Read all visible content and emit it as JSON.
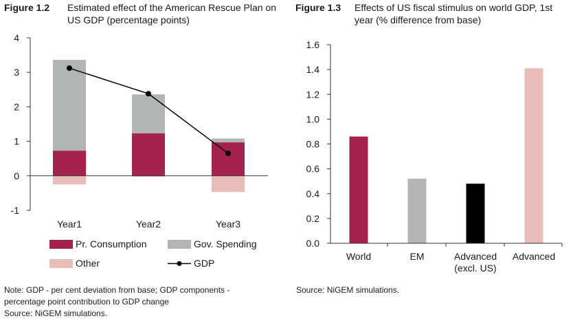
{
  "figure1": {
    "number": "Figure 1.2",
    "title": "Estimated effect of the American Rescue Plan on US GDP (percentage points)",
    "note_lines": [
      "Note: GDP - per cent deviation from base; GDP components -",
      "percentage point contribution to GDP change",
      "Source: NiGEM simulations."
    ]
  },
  "figure2": {
    "number": "Figure 1.3",
    "title": "Effects of US fiscal stimulus on world GDP, 1st year (% difference from base)",
    "source": "Source: NiGEM simulations."
  },
  "chart_data": [
    {
      "type": "bar",
      "stacked": true,
      "categories": [
        "Year1",
        "Year2",
        "Year3"
      ],
      "series": [
        {
          "name": "Pr. Consumption",
          "values": [
            0.73,
            1.23,
            0.97
          ],
          "color": "#a5214e"
        },
        {
          "name": "Gov. Spending",
          "values": [
            2.63,
            1.13,
            0.11
          ],
          "color": "#b3b5b4"
        },
        {
          "name": "Other",
          "values": [
            -0.25,
            -0.03,
            -0.47
          ],
          "color": "#e8bcb7"
        }
      ],
      "line_series": {
        "name": "GDP",
        "values": [
          3.12,
          2.38,
          0.65
        ],
        "color": "#000000"
      },
      "ylim": [
        -1,
        4
      ],
      "yticks": [
        "4",
        "3",
        "2",
        "1",
        "0",
        "-1"
      ],
      "legend_position": "bottom"
    },
    {
      "type": "bar",
      "categories": [
        "World",
        "EM",
        "Advanced (excl. US)",
        "Advanced"
      ],
      "category_lines": [
        [
          "World"
        ],
        [
          "EM"
        ],
        [
          "Advanced",
          "(excl. US)"
        ],
        [
          "Advanced"
        ]
      ],
      "values": [
        0.86,
        0.52,
        0.48,
        1.41
      ],
      "colors": [
        "#a5214e",
        "#b3b5b4",
        "#000000",
        "#e8bcb7"
      ],
      "ylim": [
        0,
        1.6
      ],
      "yticks": [
        "1.6",
        "1.4",
        "1.2",
        "1.0",
        "0.8",
        "0.6",
        "0.4",
        "0.2",
        "0.0"
      ]
    }
  ]
}
